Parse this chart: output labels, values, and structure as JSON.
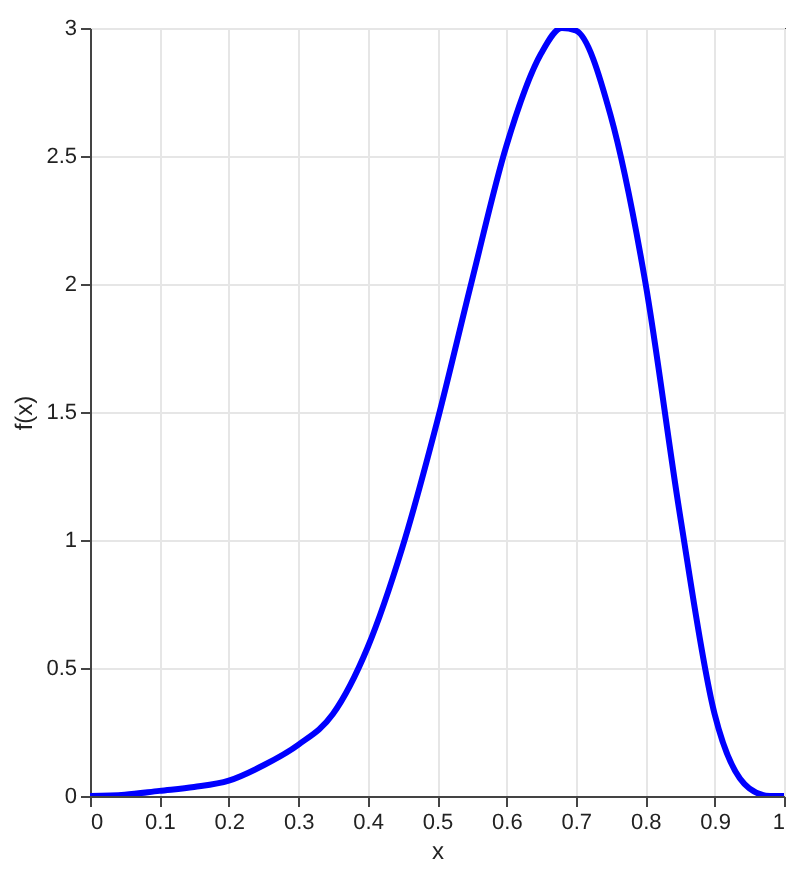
{
  "chart_data": {
    "type": "line",
    "xlabel": "x",
    "ylabel": "f(x)",
    "x": [
      0,
      0.05,
      0.1,
      0.15,
      0.2,
      0.25,
      0.3,
      0.35,
      0.4,
      0.45,
      0.5,
      0.55,
      0.6,
      0.65,
      0.68,
      0.7,
      0.75,
      0.8,
      0.85,
      0.9,
      0.95,
      0.98,
      1
    ],
    "series": [
      {
        "color": "#0000ff",
        "values": [
          0,
          0.005,
          0.02,
          0.035,
          0.06,
          0.12,
          0.2,
          0.32,
          0.58,
          0.97,
          1.46,
          2.01,
          2.54,
          2.9,
          3.0,
          2.99,
          2.66,
          2.01,
          1.1,
          0.32,
          0.03,
          0,
          0
        ]
      }
    ],
    "xlim": [
      0,
      1
    ],
    "xticks": [
      0,
      0.1,
      0.2,
      0.3,
      0.4,
      0.5,
      0.6,
      0.7,
      0.8,
      0.9,
      1
    ],
    "ylim": [
      0,
      3
    ],
    "yticks": [
      0,
      0.5,
      1,
      1.5,
      2,
      2.5,
      3
    ],
    "grid": true,
    "marker": "none",
    "line_style": "solid"
  }
}
